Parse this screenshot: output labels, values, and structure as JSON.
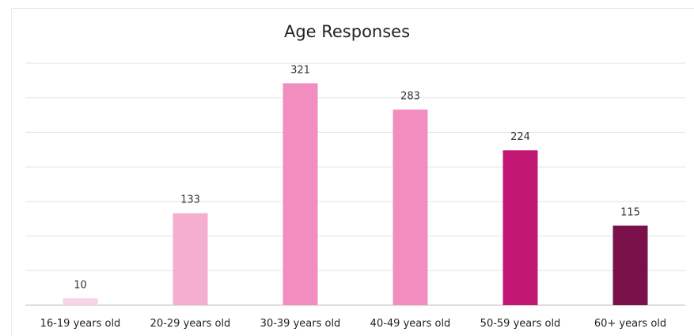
{
  "chart_data": {
    "type": "bar",
    "title": "Age Responses",
    "xlabel": "",
    "ylabel": "",
    "categories": [
      "16-19 years old",
      "20-29 years old",
      "30-39 years old",
      "40-49 years old",
      "50-59 years old",
      "60+ years old"
    ],
    "values": [
      10,
      133,
      321,
      283,
      224,
      115
    ],
    "colors": [
      "#f9d3e4",
      "#f5aed0",
      "#f28dc0",
      "#f28dc0",
      "#c21873",
      "#7b114a"
    ],
    "ylim": [
      0,
      350
    ],
    "grid": true,
    "legend": "none",
    "data_labels": true
  }
}
